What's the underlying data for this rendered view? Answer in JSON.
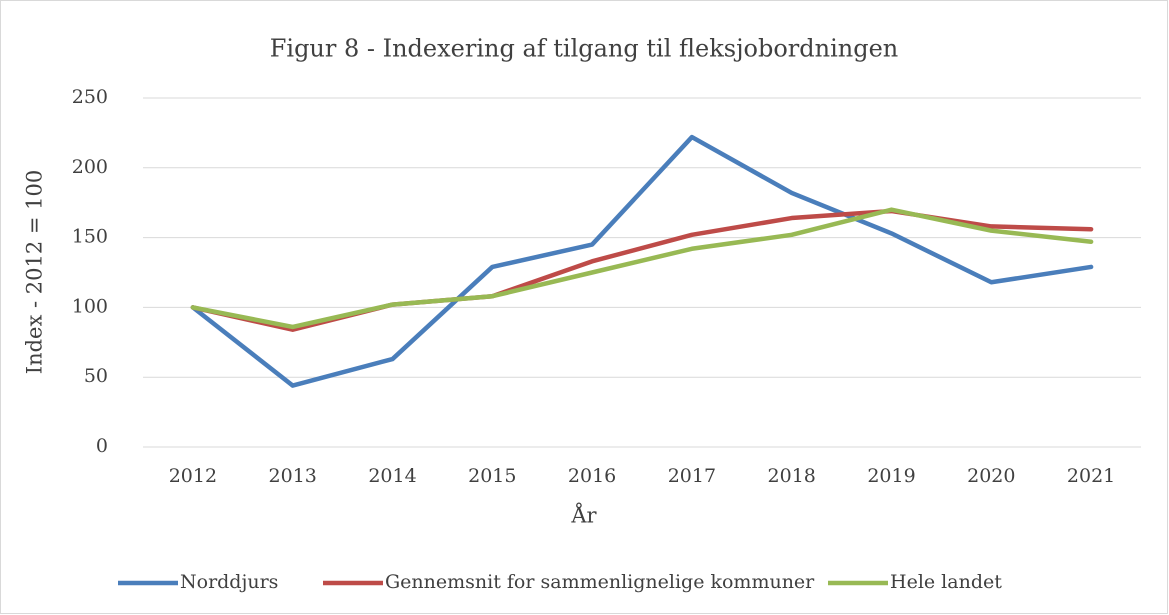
{
  "chart_data": {
    "type": "line",
    "title": "Figur 8 - Indexering af tilgang til fleksjobordningen",
    "x_label": "År",
    "y_label": "Index - 2012 = 100",
    "categories": [
      "2012",
      "2013",
      "2014",
      "2015",
      "2016",
      "2017",
      "2018",
      "2019",
      "2020",
      "2021"
    ],
    "series": [
      {
        "name": "Norddjurs",
        "color": "#4a7ebb",
        "values": [
          100,
          44,
          63,
          129,
          145,
          222,
          182,
          153,
          118,
          129
        ]
      },
      {
        "name": "Gennemsnit for sammenlignelige kommuner",
        "color": "#be4b48",
        "values": [
          100,
          84,
          102,
          108,
          133,
          152,
          164,
          169,
          158,
          156
        ]
      },
      {
        "name": "Hele landet",
        "color": "#98b954",
        "values": [
          100,
          86,
          102,
          108,
          125,
          142,
          152,
          170,
          155,
          147
        ]
      }
    ],
    "ylim": [
      0,
      250
    ],
    "yticks": [
      0,
      50,
      100,
      150,
      200,
      250
    ],
    "grid": true,
    "legend": "bottom"
  }
}
